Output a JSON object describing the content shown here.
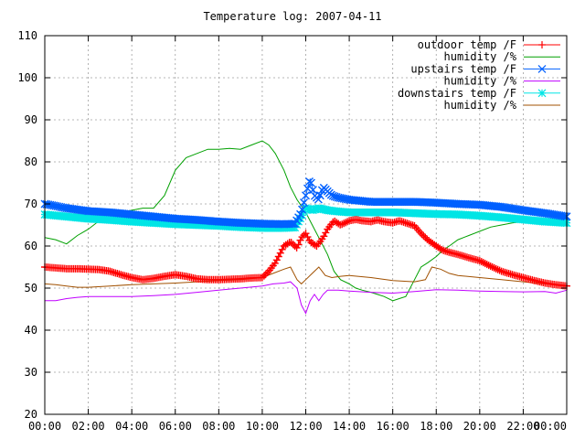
{
  "chart_data": {
    "type": "line",
    "title": "Temperature log: 2007-04-11",
    "xlabel": "",
    "ylabel": "",
    "xlim": [
      0,
      24
    ],
    "ylim": [
      20,
      110
    ],
    "grid": true,
    "legend_position": "top-right",
    "x_ticks": [
      {
        "value": 0,
        "label": "00:00"
      },
      {
        "value": 2,
        "label": "02:00"
      },
      {
        "value": 4,
        "label": "04:00"
      },
      {
        "value": 6,
        "label": "06:00"
      },
      {
        "value": 8,
        "label": "08:00"
      },
      {
        "value": 10,
        "label": "10:00"
      },
      {
        "value": 12,
        "label": "12:00"
      },
      {
        "value": 14,
        "label": "14:00"
      },
      {
        "value": 16,
        "label": "16:00"
      },
      {
        "value": 18,
        "label": "18:00"
      },
      {
        "value": 20,
        "label": "20:00"
      },
      {
        "value": 22,
        "label": "22:00"
      },
      {
        "value": 24,
        "label": "00:00"
      }
    ],
    "y_ticks": [
      {
        "value": 20,
        "label": "20"
      },
      {
        "value": 30,
        "label": "30"
      },
      {
        "value": 40,
        "label": "40"
      },
      {
        "value": 50,
        "label": "50"
      },
      {
        "value": 60,
        "label": "60"
      },
      {
        "value": 70,
        "label": "70"
      },
      {
        "value": 80,
        "label": "80"
      },
      {
        "value": 90,
        "label": "90"
      },
      {
        "value": 100,
        "label": "100"
      },
      {
        "value": 110,
        "label": "110"
      }
    ],
    "series": [
      {
        "name": "outdoor temp /F",
        "color": "#ff0000",
        "marker": "plus",
        "x": [
          0,
          0.5,
          1,
          1.5,
          2,
          2.5,
          3,
          3.5,
          4,
          4.5,
          5,
          5.5,
          6,
          6.5,
          7,
          7.5,
          8,
          8.5,
          9,
          9.5,
          10,
          10.3,
          10.6,
          11,
          11.3,
          11.6,
          11.8,
          12,
          12.2,
          12.5,
          12.8,
          13,
          13.3,
          13.6,
          14,
          14.3,
          14.6,
          15,
          15.3,
          15.6,
          16,
          16.3,
          16.6,
          17,
          17.3,
          17.6,
          18,
          18.3,
          18.6,
          19,
          19.5,
          20,
          20.5,
          21,
          21.5,
          22,
          22.5,
          23,
          23.5,
          24
        ],
        "y": [
          55,
          54.8,
          54.6,
          54.6,
          54.5,
          54.4,
          54,
          53.2,
          52.5,
          52,
          52.3,
          52.8,
          53.2,
          52.8,
          52.2,
          52,
          52,
          52.1,
          52.2,
          52.4,
          52.5,
          54,
          56,
          60,
          61,
          59.5,
          62,
          63,
          61,
          60,
          62,
          64,
          66,
          65,
          66,
          66.3,
          66,
          65.8,
          66.2,
          65.8,
          65.5,
          66,
          65.5,
          64.8,
          63,
          61.5,
          60,
          59,
          58.5,
          58,
          57.2,
          56.5,
          55.2,
          54,
          53.2,
          52.5,
          51.8,
          51.2,
          50.8,
          50.5
        ]
      },
      {
        "name": "humidity /%",
        "color": "#00a000",
        "marker": "none",
        "x": [
          0,
          0.5,
          1,
          1.5,
          2,
          2.5,
          3,
          3.5,
          4,
          4.5,
          5,
          5.5,
          6,
          6.5,
          7,
          7.5,
          8,
          8.5,
          9,
          9.5,
          10,
          10.3,
          10.6,
          11,
          11.3,
          11.6,
          12,
          12.3,
          12.6,
          13,
          13.3,
          13.6,
          14,
          14.3,
          14.6,
          15,
          15.3,
          15.6,
          16,
          16.3,
          16.6,
          17,
          17.3,
          17.6,
          18,
          18.3,
          18.6,
          19,
          19.5,
          20,
          20.5,
          21,
          21.5,
          22,
          22.5,
          23,
          23.5,
          24
        ],
        "y": [
          62,
          61.5,
          60.5,
          62.5,
          64,
          66,
          67,
          68,
          68.5,
          69,
          69,
          72,
          78,
          81,
          82,
          83,
          83,
          83.2,
          83,
          84,
          85,
          84,
          82,
          78,
          74,
          71,
          68,
          65,
          62,
          58,
          54,
          52,
          51,
          50,
          49.5,
          49,
          48.5,
          48,
          47,
          47.5,
          48,
          52,
          55,
          56,
          57.5,
          59,
          60,
          61.5,
          62.5,
          63.5,
          64.5,
          65,
          65.5,
          65.8,
          66,
          66.2,
          66.3,
          66.5
        ]
      },
      {
        "name": "upstairs temp /F",
        "color": "#0060ff",
        "marker": "x",
        "x": [
          0,
          1,
          2,
          3,
          4,
          5,
          6,
          7,
          8,
          9,
          10,
          11,
          11.5,
          11.8,
          12,
          12.2,
          12.4,
          12.6,
          12.8,
          13,
          13.2,
          13.5,
          14,
          15,
          16,
          17,
          18,
          19,
          20,
          21,
          22,
          23,
          24
        ],
        "y": [
          70,
          69,
          68.3,
          68,
          67.5,
          67,
          66.5,
          66.2,
          65.8,
          65.5,
          65.3,
          65.2,
          65.3,
          68,
          72,
          76,
          72,
          71,
          74,
          73,
          72,
          71.5,
          71,
          70.5,
          70.5,
          70.5,
          70.3,
          70,
          69.8,
          69.3,
          68.5,
          67.8,
          67
        ]
      },
      {
        "name": "humidity /%",
        "color": "#c000ff",
        "marker": "none",
        "x": [
          0,
          0.5,
          1,
          1.5,
          2,
          3,
          4,
          5,
          6,
          7,
          8,
          9,
          10,
          10.5,
          11,
          11.3,
          11.6,
          11.8,
          12,
          12.2,
          12.4,
          12.6,
          12.8,
          13,
          13.5,
          14,
          15,
          16,
          17,
          18,
          19,
          20,
          21,
          22,
          23,
          23.5,
          24
        ],
        "y": [
          47,
          47,
          47.5,
          47.8,
          48,
          48,
          48,
          48.2,
          48.5,
          49,
          49.5,
          50,
          50.5,
          51,
          51.2,
          51.5,
          50,
          46,
          44,
          47,
          48.5,
          47,
          48.5,
          49.5,
          49.5,
          49.3,
          49,
          48.8,
          49.2,
          49.6,
          49.5,
          49.3,
          49.2,
          49.1,
          49.2,
          48.8,
          49.5
        ]
      },
      {
        "name": "downstairs temp /F",
        "color": "#00e5e5",
        "marker": "star",
        "x": [
          0,
          1,
          2,
          3,
          4,
          5,
          6,
          7,
          8,
          9,
          10,
          11,
          11.5,
          11.8,
          12,
          12.3,
          12.6,
          13,
          13.5,
          14,
          15,
          16,
          17,
          18,
          19,
          20,
          21,
          22,
          23,
          24
        ],
        "y": [
          67.5,
          67,
          66.5,
          66.2,
          65.8,
          65.5,
          65.2,
          65,
          64.8,
          64.5,
          64.3,
          64.3,
          64.4,
          67,
          69,
          68.5,
          69,
          68.5,
          68.2,
          68,
          68,
          68,
          67.8,
          67.6,
          67.5,
          67.2,
          66.8,
          66.3,
          65.8,
          65.5
        ]
      },
      {
        "name": "humidity /%",
        "color": "#a05000",
        "marker": "none",
        "x": [
          0,
          0.5,
          1,
          1.5,
          2,
          3,
          4,
          5,
          6,
          7,
          8,
          9,
          10,
          10.5,
          11,
          11.3,
          11.6,
          11.8,
          12,
          12.3,
          12.6,
          12.9,
          13.2,
          13.6,
          14,
          15,
          16,
          17,
          17.5,
          17.8,
          18.2,
          18.6,
          19,
          20,
          21,
          22,
          23,
          23.5,
          24
        ],
        "y": [
          51,
          50.8,
          50.5,
          50.2,
          50.2,
          50.5,
          50.8,
          51,
          51.2,
          51.5,
          51.8,
          52,
          52.5,
          53.5,
          54.5,
          55,
          52,
          51,
          52,
          53.5,
          55,
          53,
          52.5,
          52.8,
          53,
          52.5,
          51.8,
          51.5,
          52,
          55,
          54.5,
          53.5,
          53,
          52.5,
          52,
          51.5,
          51,
          50.8,
          50.5
        ]
      }
    ]
  }
}
